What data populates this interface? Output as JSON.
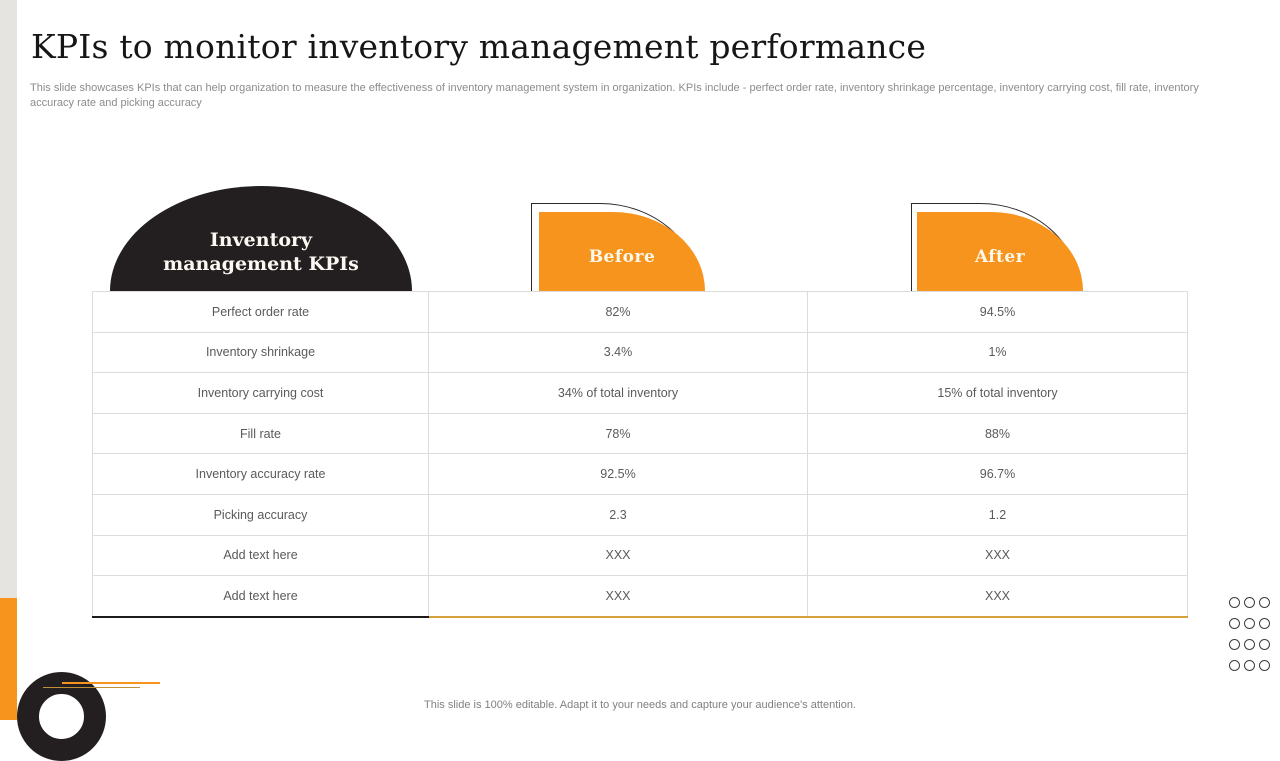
{
  "slide": {
    "title": "KPIs to monitor inventory management performance",
    "subtitle": "This slide showcases KPIs that can help organization to measure the effectiveness of inventory management system in organization. KPIs include - perfect order rate, inventory shrinkage percentage, inventory carrying cost, fill rate, inventory accuracy rate and picking accuracy",
    "footer": "This slide is 100% editable. Adapt it to your needs and capture your audience's attention."
  },
  "table": {
    "headers": {
      "kpi": "Inventory management KPIs",
      "before": "Before",
      "after": "After"
    },
    "rows": [
      [
        "Perfect order rate",
        "82%",
        "94.5%"
      ],
      [
        "Inventory shrinkage",
        "3.4%",
        "1%"
      ],
      [
        "Inventory carrying cost",
        "34% of total inventory",
        "15% of total inventory"
      ],
      [
        "Fill rate",
        "78%",
        "88%"
      ],
      [
        "Inventory accuracy rate",
        "92.5%",
        "96.7%"
      ],
      [
        "Picking accuracy",
        "2.3",
        "1.2"
      ],
      [
        "Add text here",
        "XXX",
        "XXX"
      ],
      [
        "Add text here",
        "XXX",
        "XXX"
      ]
    ]
  },
  "decor": {
    "dot_grid": {
      "rows": 4,
      "cols": 3
    }
  },
  "colors": {
    "accent_orange": "#F7941E",
    "dark": "#231F20",
    "table_border": "#DCDCDC",
    "cell_text": "#5A5A5A",
    "gold_line": "#D4A13C",
    "left_bar_gray": "#E6E4E1"
  }
}
